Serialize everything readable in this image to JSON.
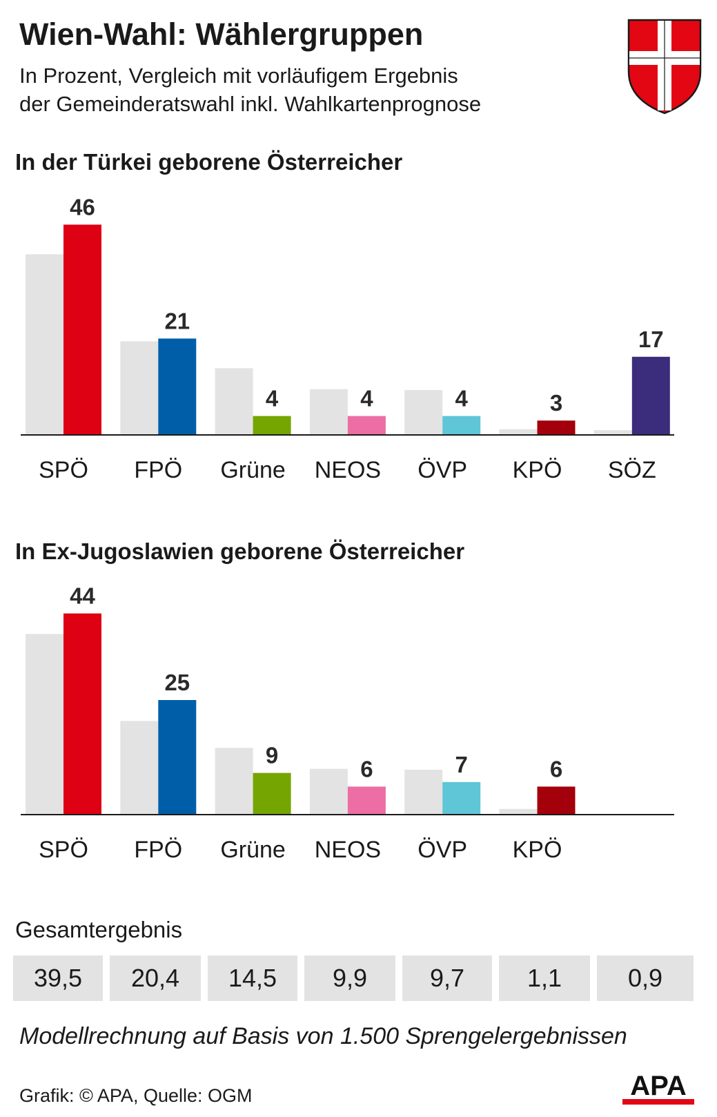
{
  "title": "Wien-Wahl: Wählergruppen",
  "subtitle_line1": "In Prozent, Vergleich mit vorläufigem Ergebnis",
  "subtitle_line2": "der Gemeinderatswahl inkl. Wahlkartenprognose",
  "colors": {
    "reference_bar": "#e3e3e3",
    "SPÖ": "#de0013",
    "FPÖ": "#005ea8",
    "Grüne": "#74a500",
    "NEOS": "#ec6ea4",
    "ÖVP": "#5ec6d6",
    "KPÖ": "#a3000c",
    "SÖZ": "#3b2d7b",
    "axis": "#1a1a1a"
  },
  "chart_data": [
    {
      "type": "bar",
      "title": "In der Türkei geborene Österreicher",
      "categories": [
        "SPÖ",
        "FPÖ",
        "Grüne",
        "NEOS",
        "ÖVP",
        "KPÖ",
        "SÖZ"
      ],
      "series": [
        {
          "values": [
            39.5,
            20.4,
            14.5,
            9.9,
            9.7,
            1.1,
            0.9
          ]
        },
        {
          "values": [
            46,
            21,
            4,
            4,
            4,
            3,
            17
          ]
        }
      ],
      "data_labels": [
        "46",
        "21",
        "4",
        "4",
        "4",
        "3",
        "17"
      ],
      "ylim": [
        0,
        50
      ],
      "grid": false
    },
    {
      "type": "bar",
      "title": "In Ex-Jugoslawien geborene Österreicher",
      "categories": [
        "SPÖ",
        "FPÖ",
        "Grüne",
        "NEOS",
        "ÖVP",
        "KPÖ"
      ],
      "series": [
        {
          "values": [
            39.5,
            20.4,
            14.5,
            9.9,
            9.7,
            1.1
          ]
        },
        {
          "values": [
            44,
            25,
            9,
            6,
            7,
            6
          ]
        }
      ],
      "data_labels": [
        "44",
        "25",
        "9",
        "6",
        "7",
        "6"
      ],
      "ylim": [
        0,
        50
      ],
      "grid": false
    }
  ],
  "totals": {
    "label": "Gesamtergebnis",
    "values": [
      "39,5",
      "20,4",
      "14,5",
      "9,9",
      "9,7",
      "1,1",
      "0,9"
    ]
  },
  "footnote": "Modellrechnung auf Basis von 1.500 Sprengelergebnissen",
  "credit": "Grafik: © APA, Quelle: OGM",
  "logo": {
    "text": "APA",
    "icon": "apa-logo"
  },
  "crest": {
    "icon": "vienna-coat-of-arms-icon"
  }
}
